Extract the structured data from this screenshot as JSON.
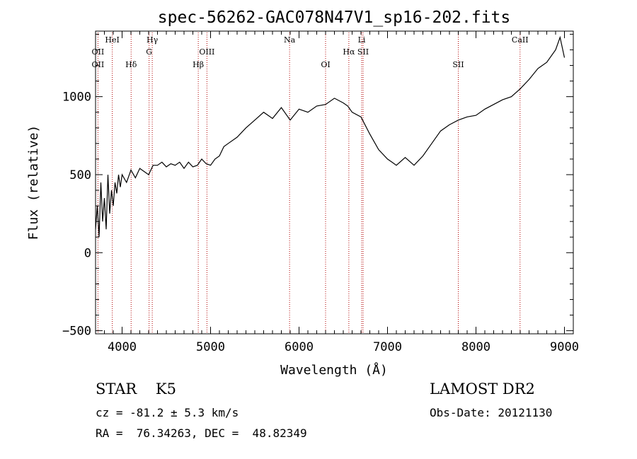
{
  "chart_data": {
    "type": "line",
    "title": "spec-56262-GAC078N47V1_sp16-202.fits",
    "xlabel": "Wavelength (Å)",
    "ylabel": "Flux (relative)",
    "xlim": [
      3700,
      9100
    ],
    "ylim": [
      -520,
      1420
    ],
    "xticks": [
      4000,
      5000,
      6000,
      7000,
      8000,
      9000
    ],
    "yticks": [
      -500,
      0,
      500,
      1000
    ],
    "grid": false,
    "series": [
      {
        "x": [
          3700,
          3720,
          3740,
          3760,
          3780,
          3800,
          3820,
          3840,
          3860,
          3880,
          3900,
          3920,
          3940,
          3960,
          3980,
          4000,
          4050,
          4100,
          4150,
          4200,
          4250,
          4300,
          4350,
          4400,
          4450,
          4500,
          4550,
          4600,
          4650,
          4700,
          4750,
          4800,
          4850,
          4900,
          4950,
          5000,
          5050,
          5100,
          5150,
          5200,
          5300,
          5400,
          5500,
          5600,
          5700,
          5800,
          5900,
          6000,
          6100,
          6200,
          6300,
          6400,
          6500,
          6550,
          6600,
          6700,
          6800,
          6900,
          7000,
          7050,
          7100,
          7200,
          7300,
          7400,
          7500,
          7600,
          7700,
          7800,
          7900,
          8000,
          8100,
          8200,
          8300,
          8400,
          8500,
          8600,
          8700,
          8800,
          8900,
          8950,
          9000
        ],
        "y": [
          150,
          300,
          100,
          450,
          200,
          350,
          150,
          500,
          250,
          400,
          300,
          450,
          380,
          500,
          420,
          500,
          450,
          530,
          480,
          540,
          520,
          500,
          560,
          560,
          580,
          550,
          570,
          560,
          580,
          540,
          580,
          550,
          560,
          600,
          570,
          560,
          600,
          620,
          680,
          700,
          740,
          800,
          850,
          900,
          860,
          930,
          850,
          920,
          900,
          940,
          950,
          990,
          960,
          940,
          900,
          870,
          760,
          660,
          600,
          580,
          560,
          610,
          560,
          620,
          700,
          780,
          820,
          850,
          870,
          880,
          920,
          950,
          980,
          1000,
          1050,
          1110,
          1180,
          1220,
          1300,
          1380,
          1250
        ]
      }
    ],
    "line_markers": [
      {
        "label": "OII",
        "x": 3727,
        "row": 2
      },
      {
        "label": "OII",
        "x": 3727,
        "row": 3
      },
      {
        "label": "HeI",
        "x": 3889,
        "row": 0
      },
      {
        "label": "Hδ",
        "x": 4102,
        "row": 3
      },
      {
        "label": "Hγ",
        "x": 4341,
        "row": 0
      },
      {
        "label": "G",
        "x": 4305,
        "row": 2
      },
      {
        "label": "OIII",
        "x": 4959,
        "row": 2
      },
      {
        "label": "Hβ",
        "x": 4861,
        "row": 3
      },
      {
        "label": "Na",
        "x": 5893,
        "row": 0
      },
      {
        "label": "OI",
        "x": 6300,
        "row": 3
      },
      {
        "label": "Li",
        "x": 6708,
        "row": 0
      },
      {
        "label": "Hα",
        "x": 6563,
        "row": 2
      },
      {
        "label": "SII",
        "x": 6724,
        "row": 2
      },
      {
        "label": "SII",
        "x": 7800,
        "row": 3
      },
      {
        "label": "CaII",
        "x": 8498,
        "row": 0
      }
    ]
  },
  "info": {
    "class_line": "STAR    K5",
    "survey": "LAMOST DR2",
    "cz_line": "cz = -81.2 ± 5.3 km/s",
    "obs_date_line": "Obs-Date: 20121130",
    "radec_line": "RA =  76.34263, DEC =  48.82349"
  },
  "colors": {
    "spectrum": "#000000",
    "marker_line": "#b00000",
    "axes": "#000000"
  }
}
